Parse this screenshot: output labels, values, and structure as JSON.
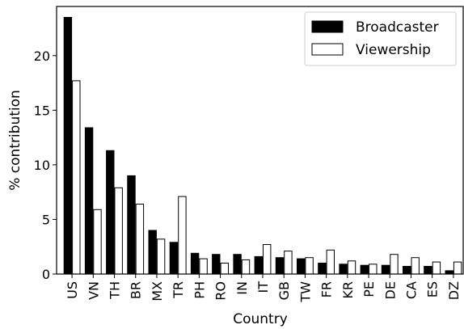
{
  "chart_data": {
    "type": "bar",
    "xlabel": "Country",
    "ylabel": "% contribution",
    "ylim": [
      0,
      24.5
    ],
    "yticks": [
      0,
      5,
      10,
      15,
      20
    ],
    "grid": false,
    "legend_position": "top-right",
    "categories": [
      "US",
      "VN",
      "TH",
      "BR",
      "MX",
      "TR",
      "PH",
      "RO",
      "IN",
      "IT",
      "GB",
      "TW",
      "FR",
      "KR",
      "PE",
      "DE",
      "CA",
      "ES",
      "DZ"
    ],
    "series": [
      {
        "name": "Broadcaster",
        "color": "#000000",
        "values": [
          23.5,
          13.4,
          11.3,
          9.0,
          4.0,
          2.9,
          1.9,
          1.8,
          1.8,
          1.6,
          1.5,
          1.4,
          1.0,
          0.9,
          0.8,
          0.8,
          0.7,
          0.7,
          0.3
        ]
      },
      {
        "name": "Viewership",
        "color": "#ffffff",
        "values": [
          17.7,
          5.9,
          7.9,
          6.4,
          3.2,
          7.1,
          1.4,
          1.0,
          1.3,
          2.7,
          2.1,
          1.5,
          2.2,
          1.2,
          0.9,
          1.8,
          1.5,
          1.1,
          1.1
        ]
      }
    ]
  }
}
